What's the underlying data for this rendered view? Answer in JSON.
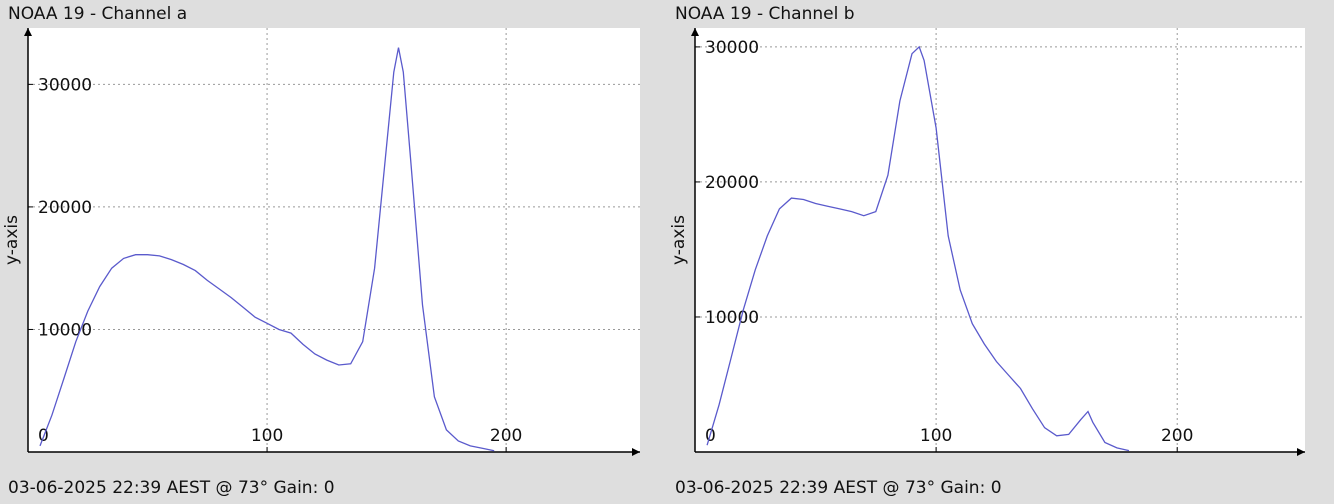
{
  "chart_data": [
    {
      "type": "line",
      "title": "NOAA 19 - Channel a",
      "ylabel": "y-axis",
      "footer": "03-06-2025 22:39 AEST @ 73° Gain: 0",
      "xlim": [
        0,
        256
      ],
      "ylim": [
        0,
        34600
      ],
      "xticks": [
        0,
        100,
        200
      ],
      "yticks": [
        10000,
        20000,
        30000
      ],
      "grid": true,
      "color": "#5a5acc",
      "x": [
        5,
        10,
        15,
        20,
        25,
        30,
        35,
        40,
        45,
        50,
        55,
        60,
        65,
        70,
        75,
        80,
        85,
        90,
        95,
        100,
        105,
        110,
        115,
        120,
        125,
        130,
        135,
        140,
        145,
        150,
        153,
        155,
        157,
        160,
        165,
        170,
        175,
        180,
        185,
        190,
        195
      ],
      "values": [
        500,
        3000,
        6000,
        9000,
        11500,
        13500,
        15000,
        15800,
        16100,
        16100,
        16000,
        15700,
        15300,
        14800,
        14000,
        13300,
        12600,
        11800,
        11000,
        10500,
        10000,
        9700,
        8800,
        8000,
        7500,
        7100,
        7200,
        9000,
        15000,
        25000,
        31000,
        33000,
        31000,
        24000,
        12000,
        4500,
        1800,
        900,
        500,
        300,
        100
      ]
    },
    {
      "type": "line",
      "title": "NOAA 19 - Channel b",
      "ylabel": "y-axis",
      "footer": "03-06-2025 22:39 AEST @ 73° Gain: 0",
      "xlim": [
        0,
        253
      ],
      "ylim": [
        0,
        31400
      ],
      "xticks": [
        0,
        100,
        200
      ],
      "yticks": [
        10000,
        20000,
        30000
      ],
      "grid": true,
      "color": "#5a5acc",
      "x": [
        5,
        10,
        15,
        20,
        25,
        30,
        35,
        40,
        45,
        50,
        55,
        60,
        65,
        70,
        75,
        80,
        85,
        90,
        93,
        95,
        100,
        105,
        110,
        115,
        120,
        125,
        130,
        135,
        140,
        145,
        150,
        155,
        160,
        163,
        165,
        170,
        175,
        180
      ],
      "values": [
        500,
        3500,
        7000,
        10500,
        13500,
        16000,
        18000,
        18800,
        18700,
        18400,
        18200,
        18000,
        17800,
        17500,
        17800,
        20500,
        26000,
        29500,
        30000,
        29000,
        24000,
        16000,
        12000,
        9500,
        8000,
        6700,
        5700,
        4700,
        3200,
        1800,
        1200,
        1300,
        2400,
        3000,
        2200,
        700,
        300,
        100
      ]
    }
  ]
}
